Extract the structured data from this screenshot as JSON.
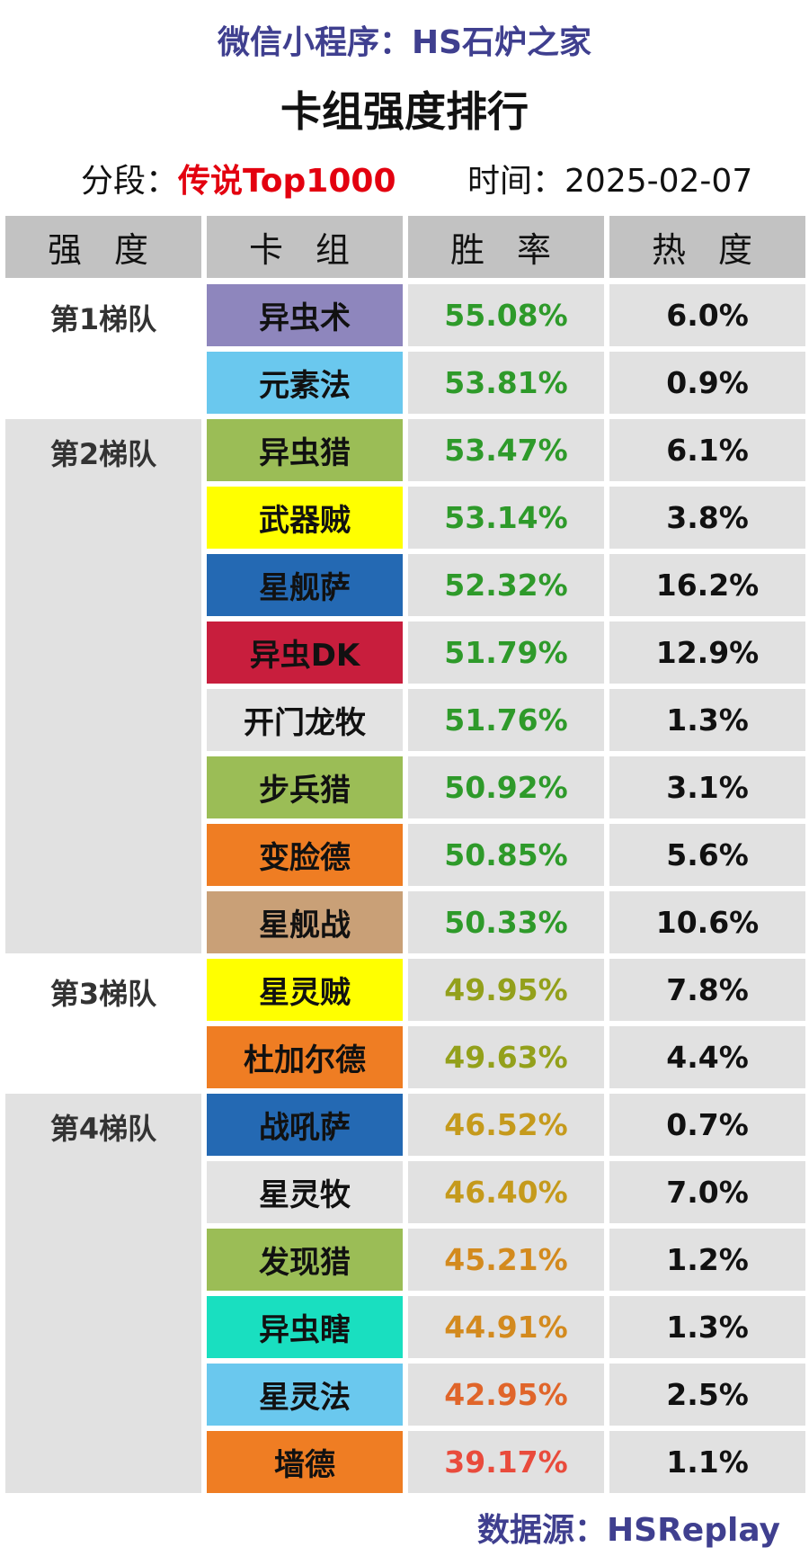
{
  "subtitle": "微信小程序：HS石炉之家",
  "title": "卡组强度排行",
  "meta": {
    "rank_label": "分段：",
    "rank_value": "传说Top1000",
    "time_label": "时间：",
    "time_value": "2025-02-07"
  },
  "headers": [
    "强 度",
    "卡 组",
    "胜 率",
    "热 度"
  ],
  "tiers": [
    {
      "label": "第1梯队",
      "shaded": false,
      "rows": [
        {
          "deck": "异虫术",
          "color": "#8e86bd",
          "winrate": "55.08%",
          "rate_color": "#2e9a2a",
          "popularity": "6.0%"
        },
        {
          "deck": "元素法",
          "color": "#6ac8ee",
          "winrate": "53.81%",
          "rate_color": "#2e9a2a",
          "popularity": "0.9%"
        }
      ]
    },
    {
      "label": "第2梯队",
      "shaded": true,
      "rows": [
        {
          "deck": "异虫猎",
          "color": "#9bbd56",
          "winrate": "53.47%",
          "rate_color": "#2e9a2a",
          "popularity": "6.1%"
        },
        {
          "deck": "武器贼",
          "color": "#ffff00",
          "winrate": "53.14%",
          "rate_color": "#2e9a2a",
          "popularity": "3.8%"
        },
        {
          "deck": "星舰萨",
          "color": "#2469b3",
          "winrate": "52.32%",
          "rate_color": "#2e9a2a",
          "popularity": "16.2%"
        },
        {
          "deck": "异虫DK",
          "color": "#c81e3d",
          "winrate": "51.79%",
          "rate_color": "#2e9a2a",
          "popularity": "12.9%"
        },
        {
          "deck": "开门龙牧",
          "color": "#e3e3e3",
          "winrate": "51.76%",
          "rate_color": "#2e9a2a",
          "popularity": "1.3%"
        },
        {
          "deck": "步兵猎",
          "color": "#9bbd56",
          "winrate": "50.92%",
          "rate_color": "#2e9a2a",
          "popularity": "3.1%"
        },
        {
          "deck": "变脸德",
          "color": "#ef7d23",
          "winrate": "50.85%",
          "rate_color": "#2e9a2a",
          "popularity": "5.6%"
        },
        {
          "deck": "星舰战",
          "color": "#c9a077",
          "winrate": "50.33%",
          "rate_color": "#2e9a2a",
          "popularity": "10.6%"
        }
      ]
    },
    {
      "label": "第3梯队",
      "shaded": false,
      "rows": [
        {
          "deck": "星灵贼",
          "color": "#ffff00",
          "winrate": "49.95%",
          "rate_color": "#93a01b",
          "popularity": "7.8%"
        },
        {
          "deck": "杜加尔德",
          "color": "#ef7d23",
          "winrate": "49.63%",
          "rate_color": "#93a01b",
          "popularity": "4.4%"
        }
      ]
    },
    {
      "label": "第4梯队",
      "shaded": true,
      "rows": [
        {
          "deck": "战吼萨",
          "color": "#2469b3",
          "winrate": "46.52%",
          "rate_color": "#c59a1c",
          "popularity": "0.7%"
        },
        {
          "deck": "星灵牧",
          "color": "#e3e3e3",
          "winrate": "46.40%",
          "rate_color": "#c59a1c",
          "popularity": "7.0%"
        },
        {
          "deck": "发现猎",
          "color": "#9bbd56",
          "winrate": "45.21%",
          "rate_color": "#d38a1e",
          "popularity": "1.2%"
        },
        {
          "deck": "异虫瞎",
          "color": "#19dfc0",
          "winrate": "44.91%",
          "rate_color": "#d38a1e",
          "popularity": "1.3%"
        },
        {
          "deck": "星灵法",
          "color": "#6ac8ee",
          "winrate": "42.95%",
          "rate_color": "#e0652a",
          "popularity": "2.5%"
        },
        {
          "deck": "墙德",
          "color": "#ef7d23",
          "winrate": "39.17%",
          "rate_color": "#e94b3c",
          "popularity": "1.1%"
        }
      ]
    }
  ],
  "footer": "数据源：HSReplay"
}
